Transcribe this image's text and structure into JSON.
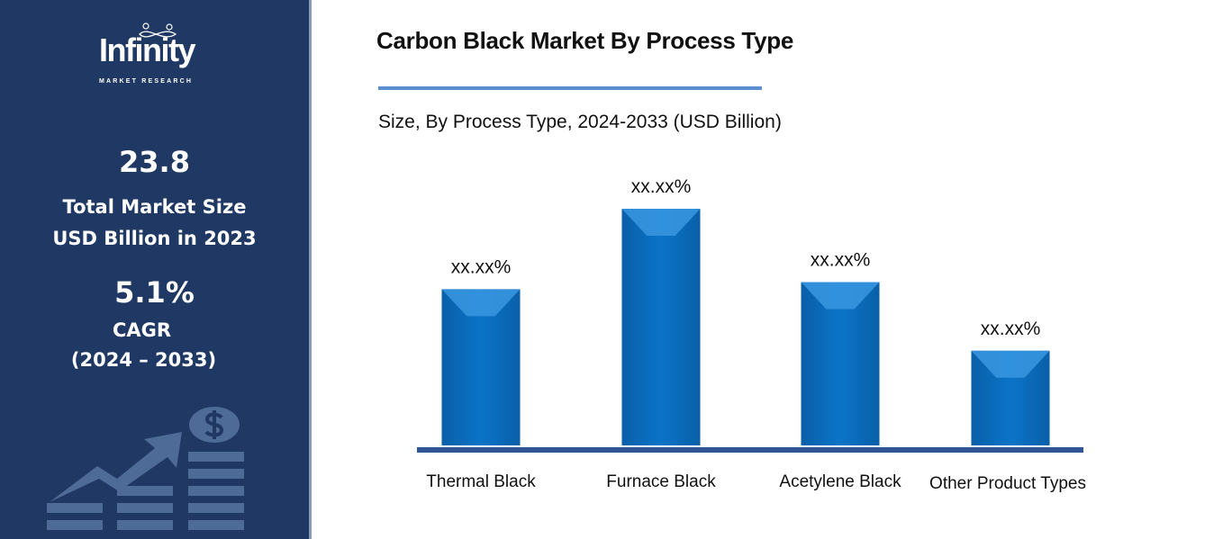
{
  "sidebar": {
    "logo_text": "Infinity",
    "logo_subtext": "MARKET RESEARCH",
    "market_size_value": "23.8",
    "market_size_label_1": "Total Market Size",
    "market_size_label_2": "USD Billion in 2023",
    "cagr_value": "5.1%",
    "cagr_label": "CAGR",
    "cagr_period": "(2024 – 2033)",
    "background_color": "#1f3864",
    "icon": "growth-chart-dollar-icon"
  },
  "chart_data": {
    "type": "bar",
    "title": "Carbon Black Market By Process Type",
    "subtitle": "Size, By Process Type, 2024-2033 (USD Billion)",
    "categories": [
      "Thermal Black",
      "Furnace Black",
      "Acetylene Black",
      "Other Product Types"
    ],
    "values": [
      66,
      100,
      69,
      40
    ],
    "data_labels": [
      "xx.xx%",
      "xx.xx%",
      "xx.xx%",
      "xx.xx%"
    ],
    "ylim": [
      0,
      100
    ],
    "grid": false,
    "bar_color": "#0b72c4",
    "axis_color": "#2f5597"
  }
}
